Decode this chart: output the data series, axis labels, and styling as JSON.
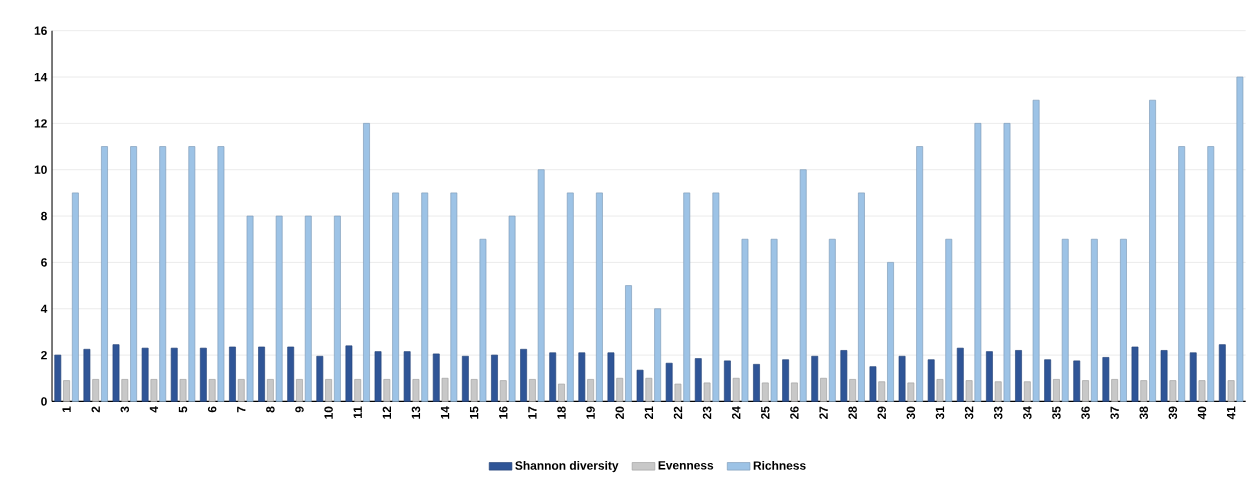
{
  "chart_data": {
    "type": "bar",
    "categories": [
      "1",
      "2",
      "3",
      "4",
      "5",
      "6",
      "7",
      "8",
      "9",
      "10",
      "11",
      "12",
      "13",
      "14",
      "15",
      "16",
      "17",
      "18",
      "19",
      "20",
      "21",
      "22",
      "23",
      "24",
      "25",
      "26",
      "27",
      "28",
      "29",
      "30",
      "31",
      "32",
      "33",
      "34",
      "35",
      "36",
      "37",
      "38",
      "39",
      "40",
      "41"
    ],
    "series": [
      {
        "name": "Shannon diversity",
        "color": "#2f5597",
        "values": [
          2.0,
          2.25,
          2.45,
          2.3,
          2.3,
          2.3,
          2.35,
          2.35,
          2.35,
          1.95,
          2.4,
          2.15,
          2.15,
          2.05,
          1.95,
          2.0,
          2.25,
          2.1,
          2.1,
          2.1,
          1.35,
          1.65,
          1.85,
          1.75,
          1.6,
          1.8,
          1.95,
          2.2,
          1.5,
          1.95,
          1.8,
          2.3,
          2.15,
          2.2,
          1.8,
          1.75,
          1.9,
          2.35,
          2.2,
          2.1,
          2.45
        ]
      },
      {
        "name": "Evenness",
        "color": "#c8c8c8",
        "values": [
          0.9,
          0.95,
          0.95,
          0.95,
          0.95,
          0.95,
          0.95,
          0.95,
          0.95,
          0.95,
          0.95,
          0.95,
          0.95,
          1.0,
          0.95,
          0.9,
          0.95,
          0.75,
          0.95,
          1.0,
          1.0,
          0.75,
          0.8,
          1.0,
          0.8,
          0.8,
          1.0,
          0.95,
          0.85,
          0.8,
          0.95,
          0.9,
          0.85,
          0.85,
          0.95,
          0.9,
          0.95,
          0.9,
          0.9,
          0.9,
          0.9
        ]
      },
      {
        "name": "Richness",
        "color": "#9dc3e6",
        "values": [
          9,
          11,
          11,
          11,
          11,
          11,
          8,
          8,
          8,
          8,
          12,
          9,
          9,
          9,
          7,
          8,
          10,
          9,
          9,
          5,
          4,
          9,
          9,
          7,
          7,
          10,
          7,
          9,
          6,
          11,
          7,
          12,
          12,
          13,
          7,
          7,
          7,
          13,
          11,
          11,
          14
        ]
      }
    ],
    "ylim": [
      0,
      16
    ],
    "yticks": [
      0,
      2,
      4,
      6,
      8,
      10,
      12,
      14,
      16
    ],
    "grid": "y",
    "legend": "bottom"
  }
}
